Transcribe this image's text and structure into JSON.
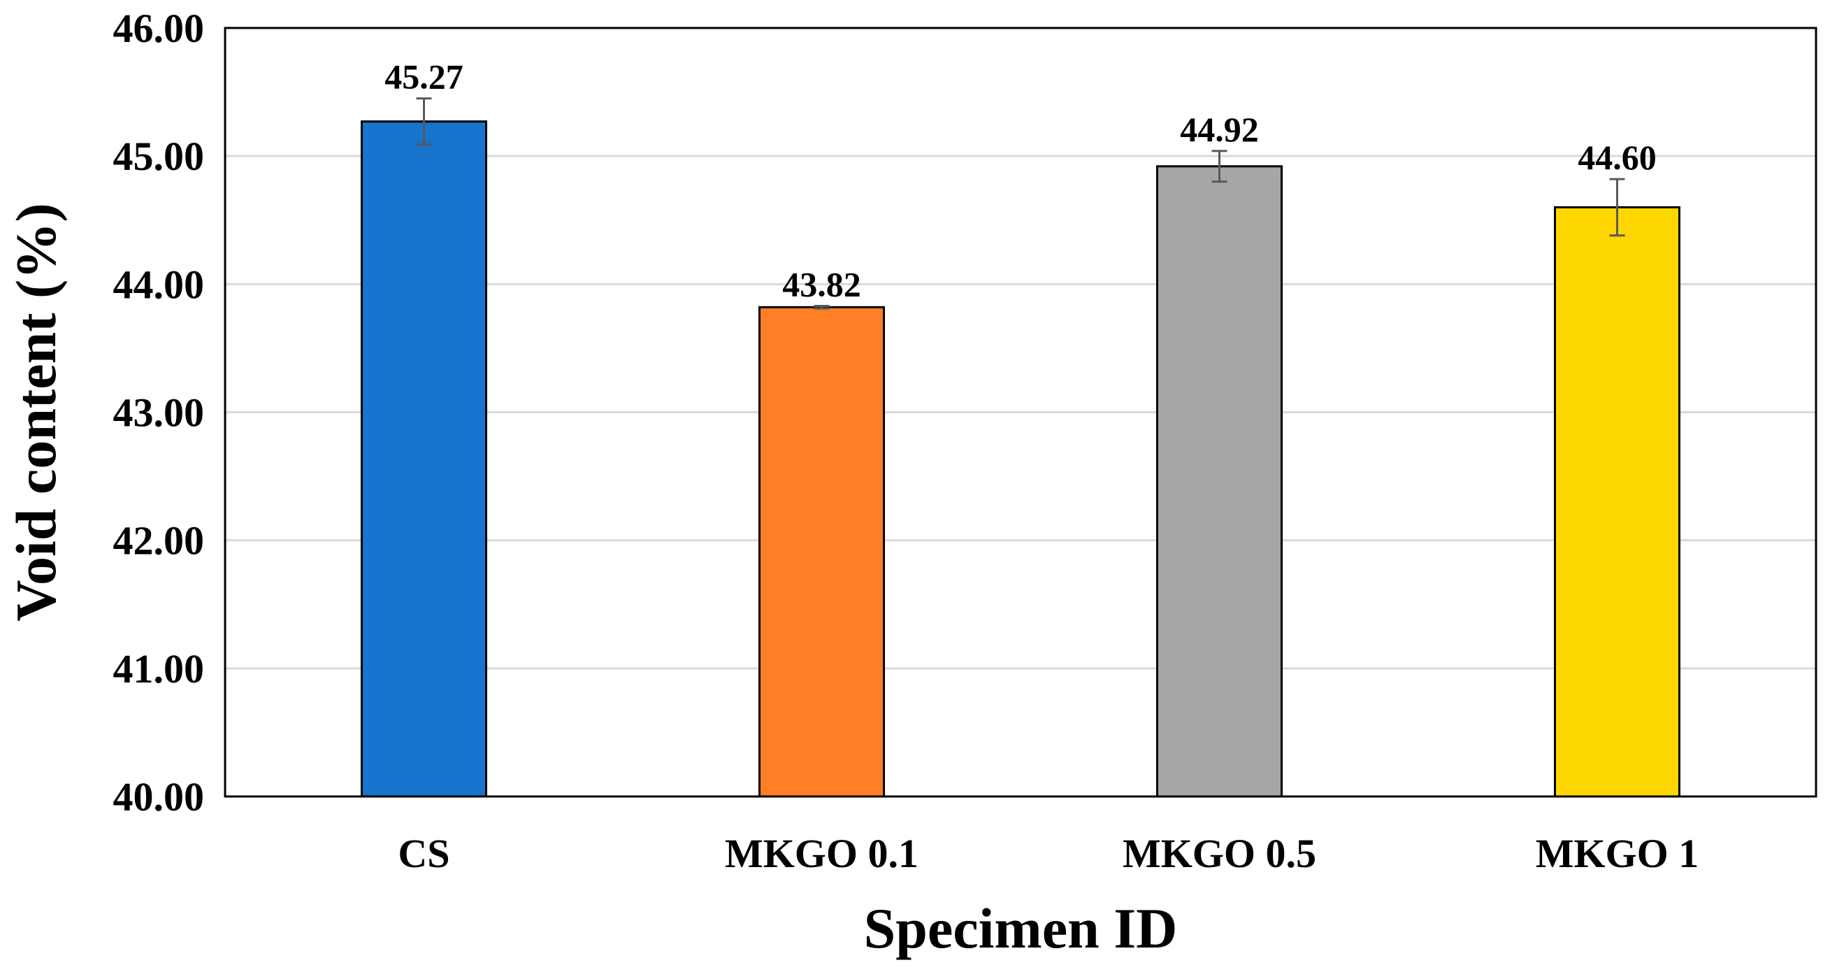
{
  "chart_data": {
    "type": "bar",
    "title": "",
    "xlabel": "Specimen ID",
    "ylabel": "Void content (%)",
    "ylim": [
      40,
      46
    ],
    "yticks": [
      40,
      41,
      42,
      43,
      44,
      45,
      46
    ],
    "ytick_labels": [
      "40.00",
      "41.00",
      "42.00",
      "43.00",
      "44.00",
      "45.00",
      "46.00"
    ],
    "categories": [
      "CS",
      "MKGO 0.1",
      "MKGO 0.5",
      "MKGO 1"
    ],
    "values": [
      45.27,
      43.82,
      44.92,
      44.6
    ],
    "value_labels": [
      "45.27",
      "43.82",
      "44.92",
      "44.60"
    ],
    "error": [
      0.18,
      0.01,
      0.12,
      0.22
    ],
    "colors": [
      "#1874CD",
      "#FF7F27",
      "#A6A6A6",
      "#FFD700"
    ],
    "grid": true,
    "legend": "none"
  }
}
